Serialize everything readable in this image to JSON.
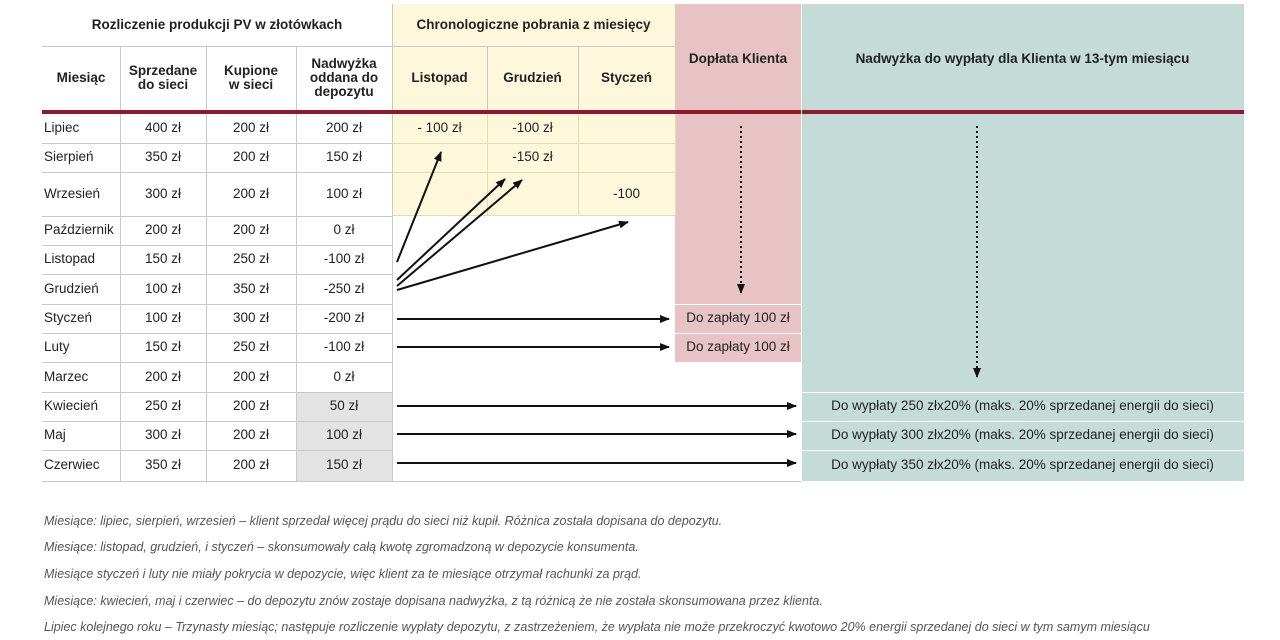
{
  "header": {
    "group_settlement": "Rozliczenie produkcji PV w złotówkach",
    "group_withdrawals": "Chronologiczne pobrania z miesięcy",
    "col_month": "Miesiąc",
    "col_sold": "Sprzedane do sieci",
    "col_bought": "Kupione w sieci",
    "col_surplus": "Nadwyżka oddana do depozytu",
    "col_listopad": "Listopad",
    "col_grudzien": "Grudzień",
    "col_styczen": "Styczeń",
    "col_doplata": "Dopłata Klienta",
    "col_payout": "Nadwyżka do wypłaty dla Klienta w 13-tym miesiącu"
  },
  "rows": [
    {
      "month": "Lipiec",
      "sold": "400 zł",
      "bought": "200 zł",
      "surplus": "200 zł",
      "listopad": "- 100 zł",
      "grudzien": "-100 zł",
      "styczen": "",
      "doplata": "",
      "payout": ""
    },
    {
      "month": "Sierpień",
      "sold": "350 zł",
      "bought": "200 zł",
      "surplus": "150 zł",
      "listopad": "",
      "grudzien": "-150 zł",
      "styczen": "",
      "doplata": "",
      "payout": ""
    },
    {
      "month": "Wrzesień",
      "sold": "300 zł",
      "bought": "200 zł",
      "surplus": "100 zł",
      "listopad": "",
      "grudzien": "",
      "styczen": "-100",
      "doplata": "",
      "payout": ""
    },
    {
      "month": "Październik",
      "sold": "200 zł",
      "bought": "200 zł",
      "surplus": "0 zł",
      "listopad": "",
      "grudzien": "",
      "styczen": "",
      "doplata": "",
      "payout": ""
    },
    {
      "month": "Listopad",
      "sold": "150 zł",
      "bought": "250 zł",
      "surplus": "-100 zł",
      "listopad": "",
      "grudzien": "",
      "styczen": "",
      "doplata": "",
      "payout": ""
    },
    {
      "month": "Grudzień",
      "sold": "100 zł",
      "bought": "350 zł",
      "surplus": "-250 zł",
      "listopad": "",
      "grudzien": "",
      "styczen": "",
      "doplata": "",
      "payout": ""
    },
    {
      "month": "Styczeń",
      "sold": "100 zł",
      "bought": "300 zł",
      "surplus": "-200 zł",
      "listopad": "",
      "grudzien": "",
      "styczen": "",
      "doplata": "Do zapłaty 100 zł",
      "payout": ""
    },
    {
      "month": "Luty",
      "sold": "150 zł",
      "bought": "250 zł",
      "surplus": "-100 zł",
      "listopad": "",
      "grudzien": "",
      "styczen": "",
      "doplata": "Do zapłaty 100 zł",
      "payout": ""
    },
    {
      "month": "Marzec",
      "sold": "200 zł",
      "bought": "200 zł",
      "surplus": "0 zł",
      "listopad": "",
      "grudzien": "",
      "styczen": "",
      "doplata": "",
      "payout": ""
    },
    {
      "month": "Kwiecień",
      "sold": "250 zł",
      "bought": "200 zł",
      "surplus": "50 zł",
      "listopad": "",
      "grudzien": "",
      "styczen": "",
      "doplata": "",
      "payout": "Do wypłaty 250 złx20%  (maks. 20% sprzedanej energii do sieci)"
    },
    {
      "month": "Maj",
      "sold": "300 zł",
      "bought": "200 zł",
      "surplus": "100 zł",
      "listopad": "",
      "grudzien": "",
      "styczen": "",
      "doplata": "",
      "payout": "Do wypłaty 300 złx20%  (maks. 20% sprzedanej energii do sieci)"
    },
    {
      "month": "Czerwiec",
      "sold": "350 zł",
      "bought": "200 zł",
      "surplus": "150 zł",
      "listopad": "",
      "grudzien": "",
      "styczen": "",
      "doplata": "",
      "payout": "Do wypłaty 350 złx20%  (maks. 20% sprzedanej energii do sieci)"
    }
  ],
  "notes": [
    "Miesiące: lipiec, sierpień, wrzesień – klient sprzedał więcej prądu do sieci niż kupił. Różnica została dopisana do depozytu.",
    "Miesiące: listopad, grudzień, i styczeń – skonsumowały całą kwotę zgromadzoną w depozycie konsumenta.",
    "Miesiące styczeń i luty nie miały pokrycia w depozycie, więc klient za te miesiące otrzymał rachunki za prąd.",
    "Miesiące: kwiecień, maj i czerwiec – do depozytu znów zostaje dopisana nadwyżka, z tą różnicą że nie została skonsumowana przez klienta.",
    "Lipiec kolejnego roku – Trzynasty miesiąc; następuje rozliczenie wypłaty depozytu, z zastrzeżeniem, że wypłata nie może przekroczyć kwotowo 20% energii sprzedanej do sieci w tym samym miesiącu"
  ],
  "colors": {
    "yellow": "#fdf8dc",
    "pink": "#e8c3c6",
    "teal": "#c4dbd7",
    "accent": "#8b1a2e",
    "grey": "#e3e3e3"
  }
}
